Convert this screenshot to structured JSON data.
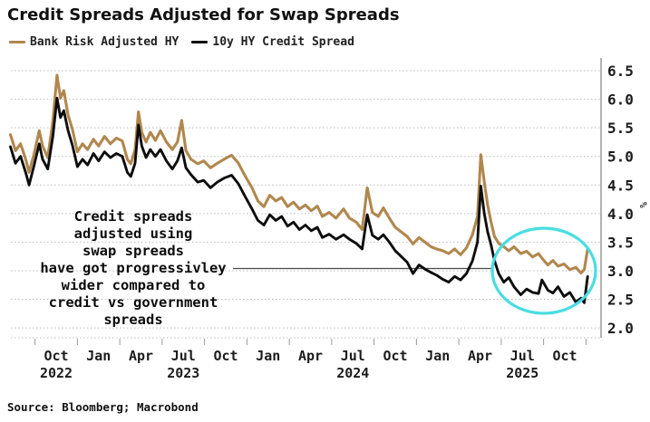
{
  "title": "Credit Spreads Adjusted for Swap Spreads",
  "source": "Source: Bloomberg; Macrobond",
  "annotation": {
    "lines": [
      "Credit spreads",
      "adjusted using",
      "swap spreads",
      "have got progressivley",
      "wider compared to",
      "credit vs government",
      "spreads"
    ]
  },
  "highlight": {
    "shape": "ellipse",
    "color": "#49dde2"
  },
  "colors": {
    "bank_risk_series": "#b1874e",
    "credit_spread_series": "#0d0d0d",
    "gridline": "#bdbdbd",
    "axis": "#9a9a9a",
    "callout_line": "#4a4a4a"
  },
  "chart_data": {
    "type": "line",
    "title": "Credit Spreads Adjusted for Swap Spreads",
    "ylabel": "%",
    "xlabel": "",
    "grid": "dotted-horizontal",
    "legend_position": "top-left",
    "ylim": [
      1.8,
      6.7
    ],
    "y_ticks": [
      2.0,
      2.5,
      3.0,
      3.5,
      4.0,
      4.5,
      5.0,
      5.5,
      6.0,
      6.5
    ],
    "x_domain_years": [
      2022.52,
      2026.0
    ],
    "x_ticks": [
      {
        "m": "Oct",
        "t": 2022.79,
        "year": "2022"
      },
      {
        "m": "Jan",
        "t": 2023.04,
        "year": ""
      },
      {
        "m": "Apr",
        "t": 2023.29,
        "year": ""
      },
      {
        "m": "Jul",
        "t": 2023.54,
        "year": "2023"
      },
      {
        "m": "Oct",
        "t": 2023.79,
        "year": ""
      },
      {
        "m": "Jan",
        "t": 2024.04,
        "year": ""
      },
      {
        "m": "Apr",
        "t": 2024.29,
        "year": ""
      },
      {
        "m": "Jul",
        "t": 2024.54,
        "year": "2024"
      },
      {
        "m": "Oct",
        "t": 2024.79,
        "year": ""
      },
      {
        "m": "Jan",
        "t": 2025.04,
        "year": ""
      },
      {
        "m": "Apr",
        "t": 2025.29,
        "year": ""
      },
      {
        "m": "Jul",
        "t": 2025.54,
        "year": "2025"
      },
      {
        "m": "Oct",
        "t": 2025.79,
        "year": ""
      }
    ],
    "x": [
      2022.52,
      2022.55,
      2022.58,
      2022.61,
      2022.63,
      2022.66,
      2022.69,
      2022.71,
      2022.74,
      2022.77,
      2022.795,
      2022.815,
      2022.835,
      2022.86,
      2022.885,
      2022.915,
      2022.945,
      2022.975,
      2023.01,
      2023.04,
      2023.075,
      2023.11,
      2023.145,
      2023.18,
      2023.21,
      2023.23,
      2023.255,
      2023.275,
      2023.295,
      2023.32,
      2023.345,
      2023.375,
      2023.405,
      2023.44,
      2023.475,
      2023.505,
      2023.53,
      2023.555,
      2023.585,
      2023.625,
      2023.66,
      2023.7,
      2023.74,
      2023.78,
      2023.825,
      2023.865,
      2023.9,
      2023.945,
      2023.98,
      2024.015,
      2024.05,
      2024.085,
      2024.12,
      2024.155,
      2024.19,
      2024.225,
      2024.26,
      2024.295,
      2024.33,
      2024.36,
      2024.4,
      2024.44,
      2024.485,
      2024.52,
      2024.56,
      2024.595,
      2024.625,
      2024.655,
      2024.69,
      2024.72,
      2024.755,
      2024.79,
      2024.825,
      2024.86,
      2024.895,
      2024.93,
      2024.965,
      2025.0,
      2025.035,
      2025.07,
      2025.105,
      2025.14,
      2025.175,
      2025.21,
      2025.245,
      2025.275,
      2025.295,
      2025.315,
      2025.335,
      2025.355,
      2025.375,
      2025.4,
      2025.43,
      2025.46,
      2025.49,
      2025.53,
      2025.565,
      2025.6,
      2025.635,
      2025.655,
      2025.69,
      2025.72,
      2025.75,
      2025.785,
      2025.82,
      2025.855,
      2025.885,
      2025.905,
      2025.925
    ],
    "series": [
      {
        "name": "Bank Risk Adjusted HY",
        "color": "#b1874e",
        "values": [
          5.38,
          5.1,
          5.22,
          4.95,
          4.72,
          5.05,
          5.45,
          5.18,
          4.98,
          5.62,
          6.42,
          6.02,
          6.15,
          5.72,
          5.48,
          5.08,
          5.22,
          5.12,
          5.3,
          5.18,
          5.35,
          5.22,
          5.32,
          5.27,
          4.95,
          4.87,
          5.12,
          5.78,
          5.42,
          5.25,
          5.42,
          5.28,
          5.45,
          5.25,
          5.12,
          5.25,
          5.63,
          5.1,
          4.95,
          4.87,
          4.92,
          4.8,
          4.88,
          4.95,
          5.02,
          4.88,
          4.68,
          4.45,
          4.22,
          4.12,
          4.32,
          4.22,
          4.28,
          4.12,
          4.2,
          4.08,
          4.15,
          4.05,
          4.13,
          3.95,
          4.02,
          3.92,
          4.08,
          3.92,
          3.85,
          3.72,
          4.45,
          4.02,
          3.95,
          4.1,
          3.92,
          3.76,
          3.68,
          3.6,
          3.47,
          3.58,
          3.5,
          3.42,
          3.38,
          3.35,
          3.3,
          3.38,
          3.28,
          3.4,
          3.63,
          3.95,
          5.03,
          4.55,
          4.15,
          3.85,
          3.6,
          3.48,
          3.42,
          3.35,
          3.42,
          3.3,
          3.34,
          3.24,
          3.3,
          3.22,
          3.1,
          3.18,
          3.08,
          3.12,
          3.02,
          3.06,
          2.96,
          3.02,
          3.38
        ]
      },
      {
        "name": "10y HY Credit Spread",
        "color": "#0d0d0d",
        "values": [
          5.17,
          4.88,
          5.0,
          4.72,
          4.5,
          4.85,
          5.22,
          4.95,
          4.78,
          5.35,
          6.02,
          5.68,
          5.8,
          5.45,
          5.2,
          4.82,
          4.95,
          4.85,
          5.05,
          4.92,
          5.08,
          4.98,
          5.05,
          5.0,
          4.72,
          4.65,
          4.88,
          5.55,
          5.18,
          4.98,
          5.12,
          5.0,
          5.12,
          4.92,
          4.78,
          4.92,
          5.15,
          4.8,
          4.68,
          4.55,
          4.58,
          4.45,
          4.55,
          4.62,
          4.67,
          4.52,
          4.32,
          4.08,
          3.88,
          3.8,
          3.98,
          3.88,
          3.95,
          3.78,
          3.85,
          3.72,
          3.8,
          3.7,
          3.76,
          3.58,
          3.64,
          3.55,
          3.63,
          3.55,
          3.48,
          3.38,
          3.98,
          3.62,
          3.55,
          3.63,
          3.5,
          3.35,
          3.25,
          3.15,
          2.95,
          3.1,
          3.03,
          2.97,
          2.92,
          2.85,
          2.8,
          2.9,
          2.84,
          2.95,
          3.17,
          3.5,
          4.48,
          4.0,
          3.68,
          3.45,
          3.18,
          2.95,
          2.8,
          2.88,
          2.72,
          2.58,
          2.68,
          2.62,
          2.6,
          2.84,
          2.66,
          2.61,
          2.72,
          2.55,
          2.62,
          2.45,
          2.52,
          2.44,
          2.9
        ]
      }
    ]
  }
}
